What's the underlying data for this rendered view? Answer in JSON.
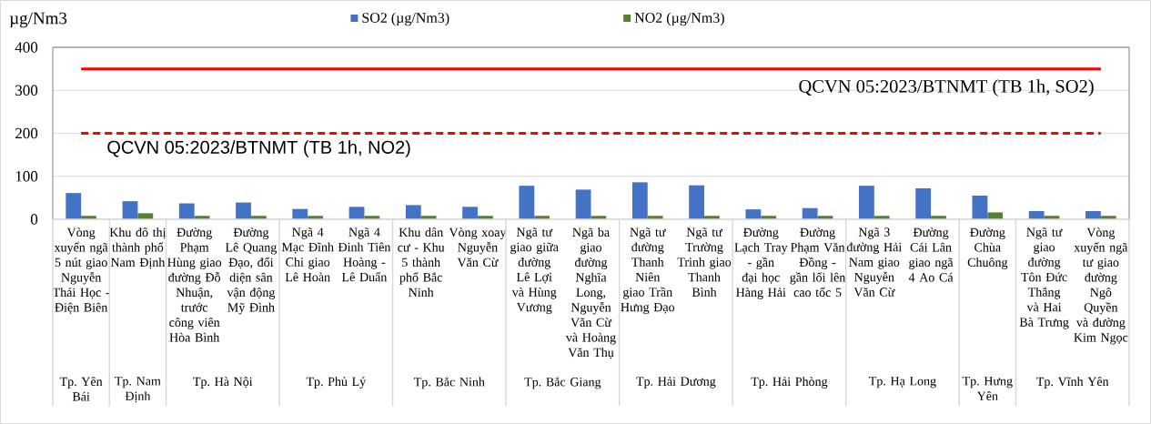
{
  "chart_data": {
    "type": "bar",
    "ylabel": "µg/Nm3",
    "categories": [
      "Vòng xuyến ngã 5 nút giao Nguyễn Thái Học - Điện Biên",
      "Khu đô thị thành phố Nam Định",
      "Đường Phạm Hùng giao đường Đỗ Nhuận, trước công viên Hòa Bình",
      "Đường Lê Quang Đạo, đối diện sân vận động Mỹ Đình",
      "Ngã 4 Mạc Đĩnh Chi giao Lê Hoàn",
      "Ngã 4 Đinh Tiên Hoàng - Lê Duẩn",
      "Khu dân cư - Khu 5 thành phố Bắc Ninh",
      "Vòng xoay Nguyễn Văn Cừ",
      "Ngã tư giao giữa đường Lê Lợi và Hùng Vương",
      "Ngã ba giao đường Nghĩa Long, Nguyễn Văn Cừ và Hoàng Văn Thụ",
      "Ngã tư đường Thanh Niên giao Trần Hưng Đạo",
      "Ngã tư Trường Trinh giao Thanh Bình",
      "Đường Lạch Tray - gần đại học Hàng Hải",
      "Đường Phạm Văn Đồng - gần lối lên cao tốc 5",
      "Ngã 3 đường Hải Nam giao Nguyễn Văn Cừ",
      "Đường Cái Lân giao ngã 4 Ao Cá",
      "Đường Chùa Chuông",
      "Ngã tư giao đường Tôn Đức Thắng và Hai Bà Trưng",
      "Vòng xuyến ngã tư giao đường Ngô Quyền và đường Kim Ngọc"
    ],
    "series": [
      {
        "name": "SO2 (µg/Nm3)",
        "color": "#4472c4",
        "values": [
          61,
          42,
          37,
          39,
          24,
          29,
          33,
          29,
          78,
          69,
          86,
          79,
          23,
          26,
          78,
          72,
          55,
          19,
          19
        ]
      },
      {
        "name": "NO2 (µg/Nm3)",
        "color": "#548235",
        "values": [
          8,
          14,
          8,
          8,
          8,
          8,
          8,
          8,
          8,
          8,
          8,
          8,
          8,
          8,
          8,
          8,
          16,
          8,
          8
        ]
      },
      {
        "type": "line",
        "name": "QCVN 05:2023/BTNMT (TB 1h, SO2)",
        "color": "#ff0000",
        "line_style": "solid",
        "values": [
          350,
          350,
          350,
          350,
          350,
          350,
          350,
          350,
          350,
          350,
          350,
          350,
          350,
          350,
          350,
          350,
          350,
          350,
          350
        ]
      },
      {
        "type": "line",
        "name": "QCVN 05:2023/BTNMT (TB 1h, NO2)",
        "color": "#ff0000",
        "line_style": "dashed",
        "values": [
          200,
          200,
          200,
          200,
          200,
          200,
          200,
          200,
          200,
          200,
          200,
          200,
          200,
          200,
          200,
          200,
          200,
          200,
          200
        ]
      }
    ],
    "ylim": [
      0,
      400
    ],
    "yticks": [
      0,
      100,
      200,
      300,
      400
    ],
    "grid": "y",
    "legend": "top",
    "annotations": [
      "Tp. Yên Bái",
      "Tp. Nam Định",
      "Tp. Hà Nội",
      "Tp. Phủ Lý",
      "Tp. Bắc Ninh",
      "Tp. Bắc Giang",
      "Tp. Hải Dương",
      "Tp. Hải Phòng",
      "Tp. Hạ Long",
      "Tp. Hưng Yên",
      "Tp. Vĩnh Yên"
    ]
  }
}
